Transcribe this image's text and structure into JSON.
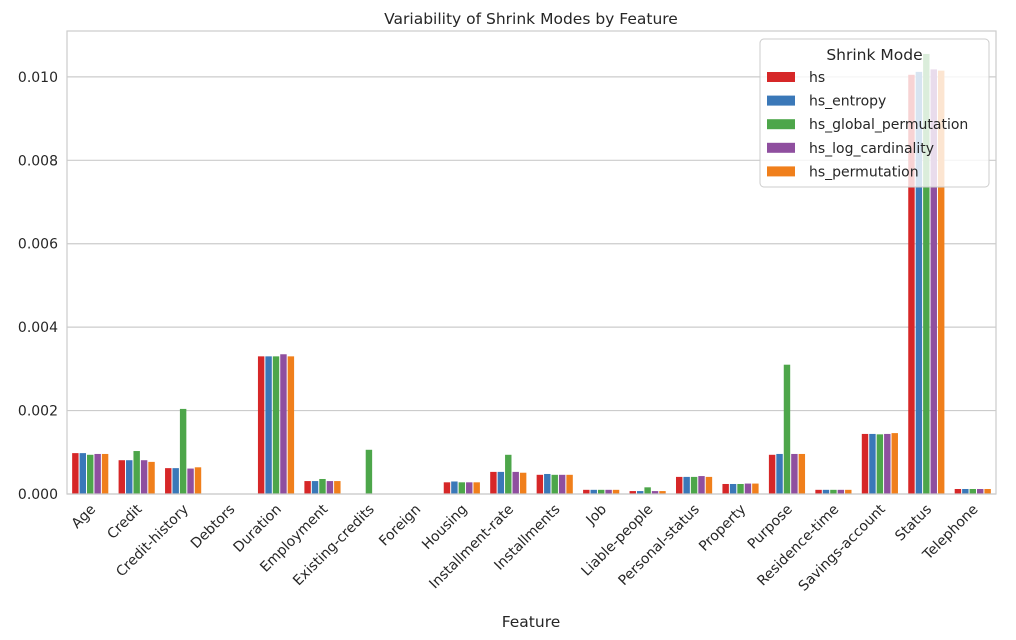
{
  "chart_data": {
    "type": "bar",
    "title": "Variability of Shrink Modes by Feature",
    "xlabel": "Feature",
    "ylabel": "",
    "ylim": [
      0,
      0.0111
    ],
    "yticks": [
      "0.000",
      "0.002",
      "0.004",
      "0.006",
      "0.008",
      "0.010"
    ],
    "grid": true,
    "legend_title": "Shrink Mode",
    "legend_position": "top-right",
    "categories": [
      "Age",
      "Credit",
      "Credit-history",
      "Debtors",
      "Duration",
      "Employment",
      "Existing-credits",
      "Foreign",
      "Housing",
      "Installment-rate",
      "Installments",
      "Job",
      "Liable-people",
      "Personal-status",
      "Property",
      "Purpose",
      "Residence-time",
      "Savings-account",
      "Status",
      "Telephone"
    ],
    "series": [
      {
        "name": "hs",
        "color": "#d62728",
        "values": [
          0.00098,
          0.00081,
          0.00062,
          0.0,
          0.0033,
          0.00031,
          0.0,
          0.0,
          0.00028,
          0.00053,
          0.00046,
          0.0001,
          7e-05,
          0.00041,
          0.00024,
          0.00094,
          0.0001,
          0.00144,
          0.01005,
          0.00012
        ]
      },
      {
        "name": "hs_entropy",
        "color": "#3a78b8",
        "values": [
          0.00098,
          0.00081,
          0.00062,
          0.0,
          0.0033,
          0.00031,
          0.0,
          0.0,
          0.0003,
          0.00053,
          0.00048,
          0.0001,
          7e-05,
          0.00041,
          0.00024,
          0.00096,
          0.0001,
          0.00144,
          0.01012,
          0.00012
        ]
      },
      {
        "name": "hs_global_permutation",
        "color": "#4da64a",
        "values": [
          0.00094,
          0.00103,
          0.00204,
          0.0,
          0.0033,
          0.00036,
          0.00106,
          0.0,
          0.00028,
          0.00094,
          0.00046,
          0.0001,
          0.00016,
          0.00041,
          0.00024,
          0.0031,
          0.0001,
          0.00143,
          0.01055,
          0.00012
        ]
      },
      {
        "name": "hs_log_cardinality",
        "color": "#8f4f9f",
        "values": [
          0.00096,
          0.00081,
          0.00061,
          0.0,
          0.00335,
          0.00031,
          0.0,
          0.0,
          0.00028,
          0.00053,
          0.00046,
          0.0001,
          7e-05,
          0.00043,
          0.00025,
          0.00096,
          0.0001,
          0.00144,
          0.01018,
          0.00012
        ]
      },
      {
        "name": "hs_permutation",
        "color": "#f07f1b",
        "values": [
          0.00096,
          0.00077,
          0.00064,
          0.0,
          0.0033,
          0.00031,
          0.0,
          0.0,
          0.00028,
          0.00051,
          0.00046,
          0.0001,
          7e-05,
          0.00041,
          0.00025,
          0.00096,
          0.0001,
          0.00146,
          0.01015,
          0.00012
        ]
      }
    ]
  }
}
